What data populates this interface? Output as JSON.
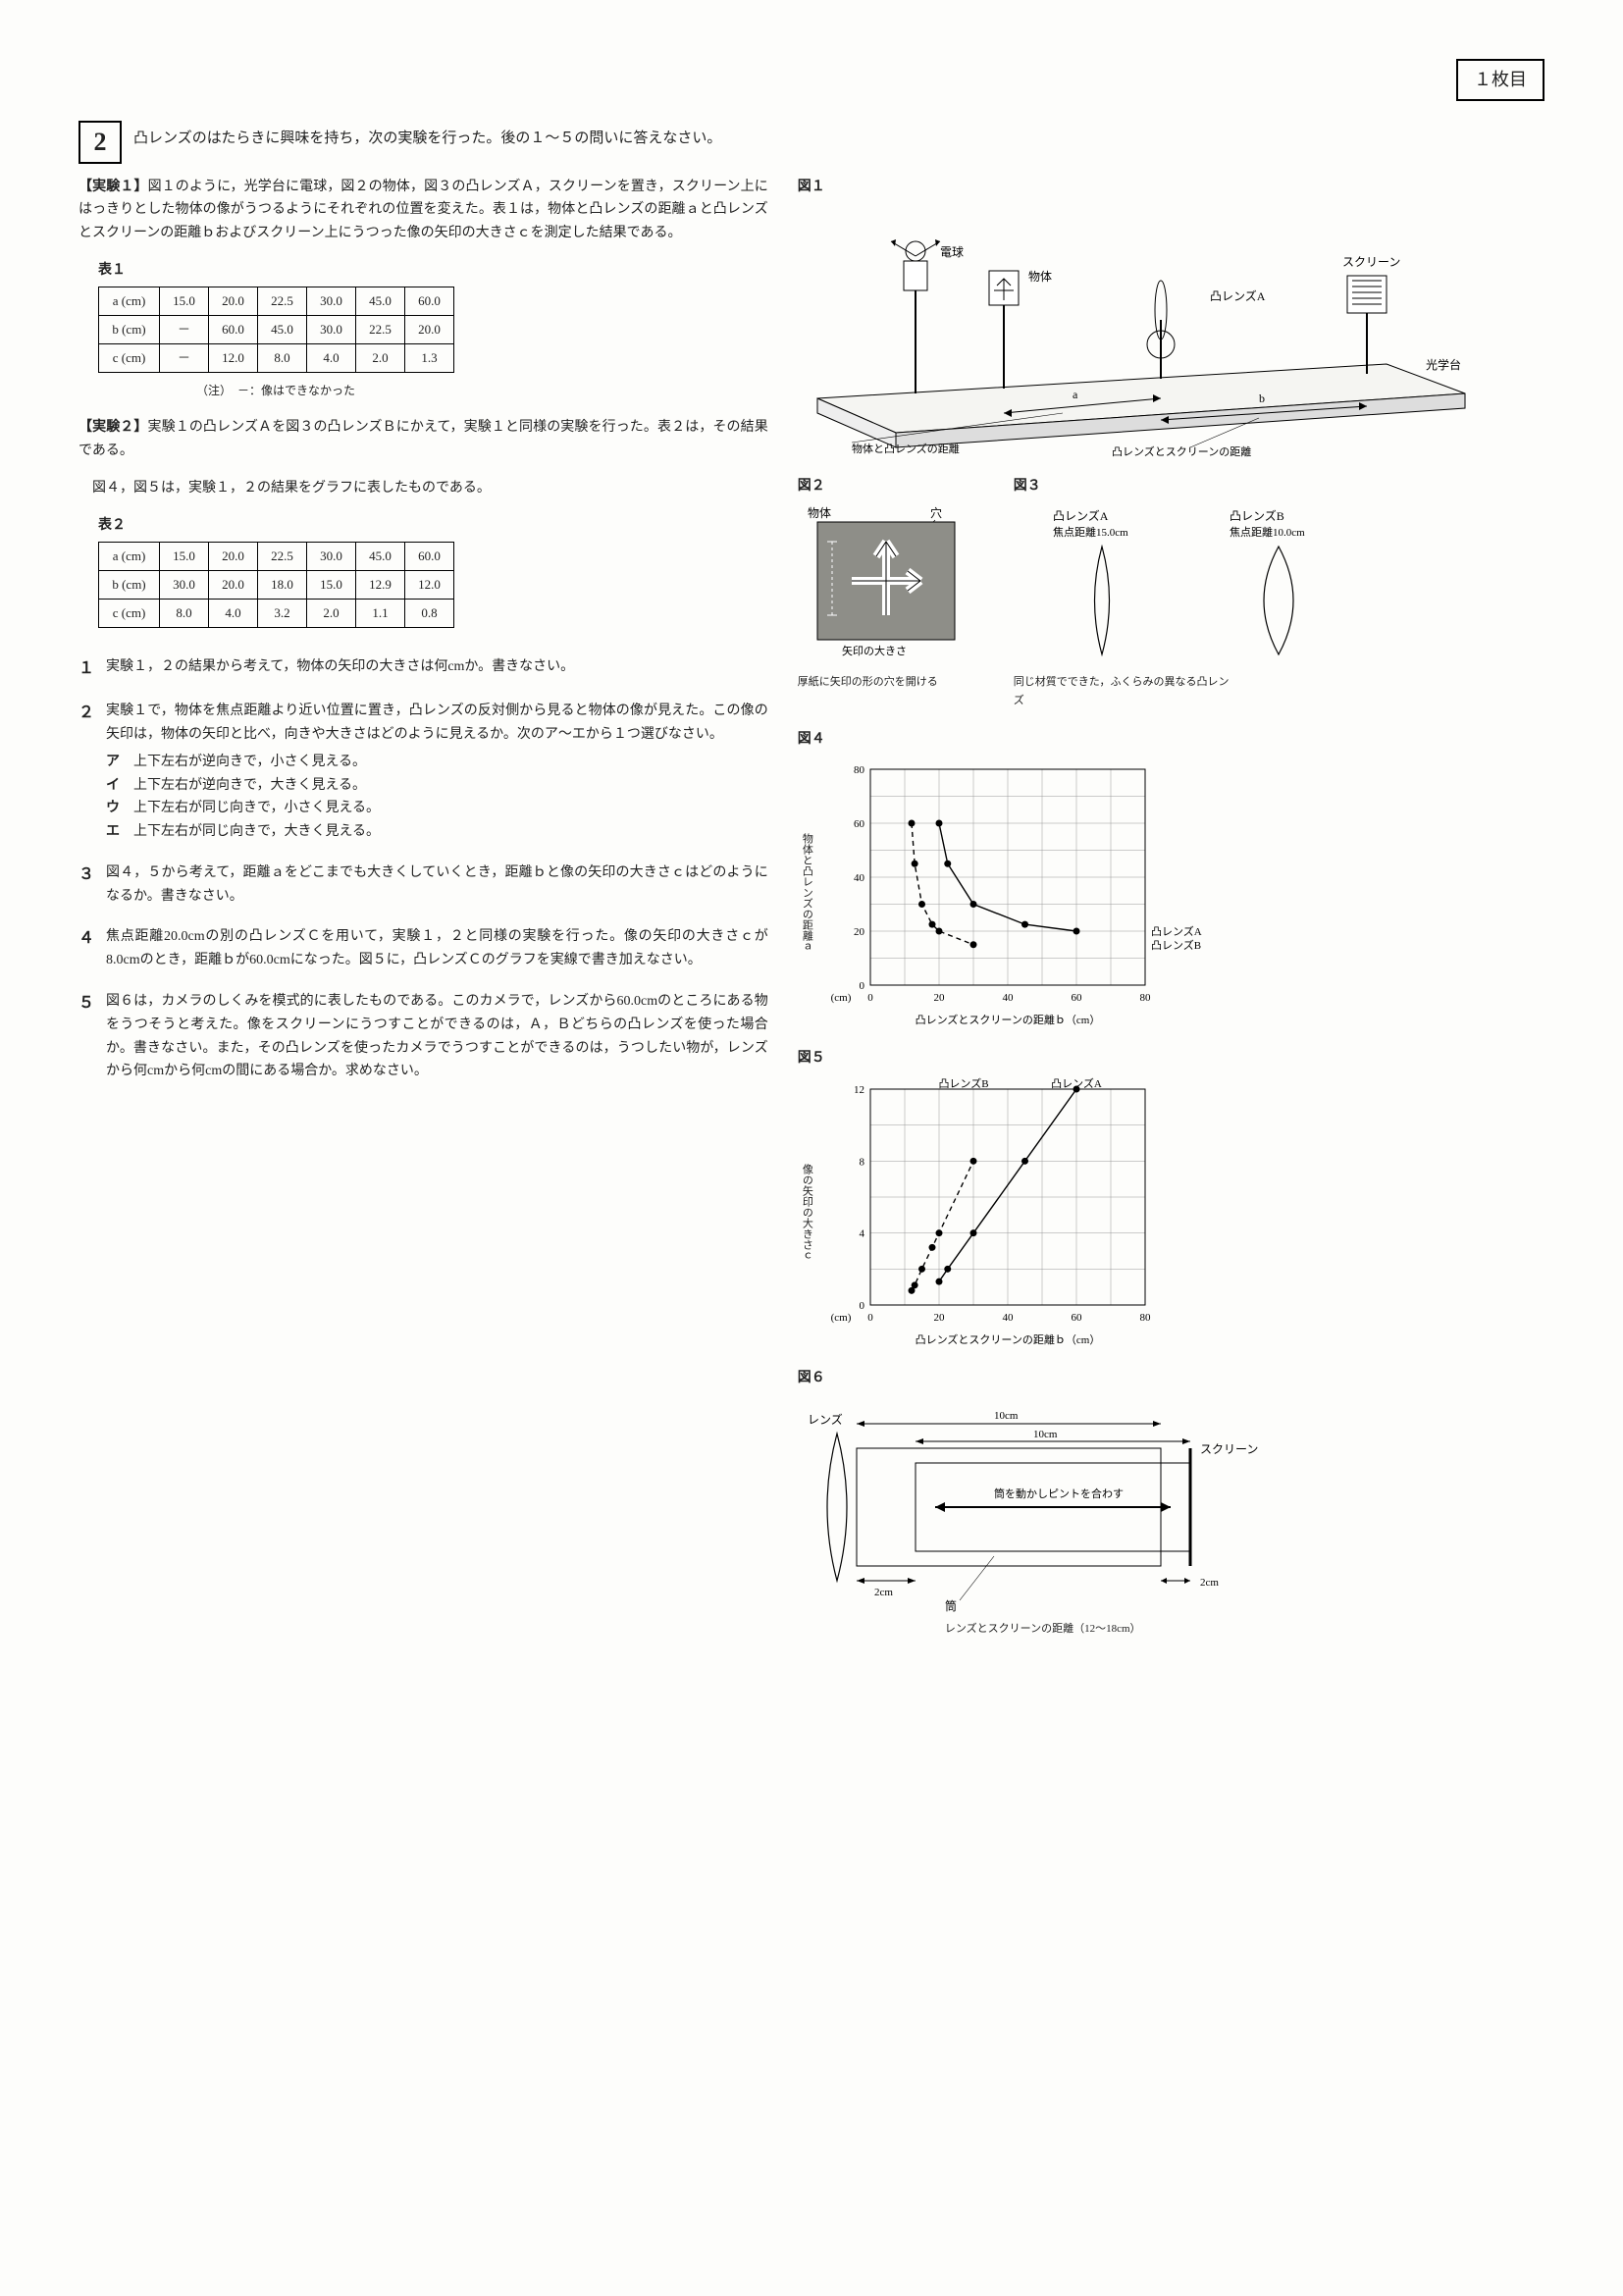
{
  "page_tag": "１枚目",
  "question_box": "2",
  "intro": "凸レンズのはたらきに興味を持ち，次の実験を行った。後の１〜５の問いに答えなさい。",
  "exp1": {
    "head": "【実験１】",
    "text": "図１のように，光学台に電球，図２の物体，図３の凸レンズＡ，スクリーンを置き，スクリーン上にはっきりとした物体の像がうつるようにそれぞれの位置を変えた。表１は，物体と凸レンズの距離ａと凸レンズとスクリーンの距離ｂおよびスクリーン上にうつった像の矢印の大きさｃを測定した結果である。"
  },
  "table1": {
    "label": "表１",
    "rows": [
      [
        "a (cm)",
        "15.0",
        "20.0",
        "22.5",
        "30.0",
        "45.0",
        "60.0"
      ],
      [
        "b (cm)",
        "－",
        "60.0",
        "45.0",
        "30.0",
        "22.5",
        "20.0"
      ],
      [
        "c (cm)",
        "－",
        "12.0",
        "8.0",
        "4.0",
        "2.0",
        "1.3"
      ]
    ],
    "note": "（注）　－：像はできなかった"
  },
  "exp2": {
    "head": "【実験２】",
    "text": "実験１の凸レンズＡを図３の凸レンズＢにかえて，実験１と同様の実験を行った。表２は，その結果である。",
    "text2": "図４，図５は，実験１，２の結果をグラフに表したものである。"
  },
  "table2": {
    "label": "表２",
    "rows": [
      [
        "a (cm)",
        "15.0",
        "20.0",
        "22.5",
        "30.0",
        "45.0",
        "60.0"
      ],
      [
        "b (cm)",
        "30.0",
        "20.0",
        "18.0",
        "15.0",
        "12.9",
        "12.0"
      ],
      [
        "c (cm)",
        "8.0",
        "4.0",
        "3.2",
        "2.0",
        "1.1",
        "0.8"
      ]
    ]
  },
  "q1": {
    "num": "１",
    "text": "実験１，２の結果から考えて，物体の矢印の大きさは何cmか。書きなさい。"
  },
  "q2": {
    "num": "２",
    "text": "実験１で，物体を焦点距離より近い位置に置き，凸レンズの反対側から見ると物体の像が見えた。この像の矢印は，物体の矢印と比べ，向きや大きさはどのように見えるか。次のア〜エから１つ選びなさい。",
    "choices": [
      {
        "k": "ア",
        "v": "上下左右が逆向きで，小さく見える。"
      },
      {
        "k": "イ",
        "v": "上下左右が逆向きで，大きく見える。"
      },
      {
        "k": "ウ",
        "v": "上下左右が同じ向きで，小さく見える。"
      },
      {
        "k": "エ",
        "v": "上下左右が同じ向きで，大きく見える。"
      }
    ]
  },
  "q3": {
    "num": "３",
    "text": "図４，５から考えて，距離ａをどこまでも大きくしていくとき，距離ｂと像の矢印の大きさｃはどのようになるか。書きなさい。"
  },
  "q4": {
    "num": "４",
    "text": "焦点距離20.0cmの別の凸レンズＣを用いて，実験１，２と同様の実験を行った。像の矢印の大きさｃが8.0cmのとき，距離ｂが60.0cmになった。図５に，凸レンズＣのグラフを実線で書き加えなさい。"
  },
  "q5": {
    "num": "５",
    "text": "図６は，カメラのしくみを模式的に表したものである。このカメラで，レンズから60.0cmのところにある物をうつそうと考えた。像をスクリーンにうつすことができるのは，Ａ，Ｂどちらの凸レンズを使った場合か。書きなさい。また，その凸レンズを使ったカメラでうつすことができるのは，うつしたい物が，レンズから何cmから何cmの間にある場合か。求めなさい。"
  },
  "fig1": {
    "label": "図１",
    "labels": {
      "bulb": "電球",
      "object": "物体",
      "lensA": "凸レンズA",
      "screen": "スクリーン",
      "bench": "光学台",
      "a": "a",
      "b": "b",
      "dist_a": "物体と凸レンズの距離",
      "dist_b": "凸レンズとスクリーンの距離"
    }
  },
  "fig2": {
    "label": "図２",
    "labels": {
      "object": "物体",
      "hole": "穴",
      "arrow_size": "矢印の大きさ"
    },
    "caption": "厚紙に矢印の形の穴を開ける"
  },
  "fig3": {
    "label": "図３",
    "labels": {
      "lensA": "凸レンズA",
      "lensB": "凸レンズB",
      "fA": "焦点距離15.0cm",
      "fB": "焦点距離10.0cm"
    },
    "caption": "同じ材質でできた，ふくらみの異なる凸レンズ"
  },
  "fig4": {
    "label": "図４",
    "ylabel": "物体と凸レンズの距離ａ",
    "xlabel": "凸レンズとスクリーンの距離ｂ（cm）",
    "yunit": "(cm)",
    "legendA": "凸レンズA",
    "legendB": "凸レンズB",
    "xlim": [
      0,
      80
    ],
    "ylim": [
      0,
      80
    ],
    "xstep": 20,
    "ystep": 20,
    "seriesA": [
      [
        20,
        60
      ],
      [
        22.5,
        45
      ],
      [
        30,
        30
      ],
      [
        45,
        22.5
      ],
      [
        60,
        20
      ]
    ],
    "seriesB": [
      [
        12,
        60
      ],
      [
        12.9,
        45
      ],
      [
        15,
        30
      ],
      [
        18,
        22.5
      ],
      [
        20,
        20
      ],
      [
        30,
        15
      ]
    ],
    "styleA": "solid",
    "styleB": "dashed",
    "colors": {
      "line": "#000000",
      "grid": "#999999",
      "bg": "#ffffff"
    }
  },
  "fig5": {
    "label": "図５",
    "ylabel": "像の矢印の大きさｃ",
    "xlabel": "凸レンズとスクリーンの距離ｂ（cm）",
    "yunit": "(cm)",
    "legendA": "凸レンズA",
    "legendB": "凸レンズB",
    "xlim": [
      0,
      80
    ],
    "ylim": [
      0,
      12
    ],
    "xstep": 20,
    "ystep": 4,
    "seriesA": [
      [
        20,
        1.3
      ],
      [
        22.5,
        2
      ],
      [
        30,
        4
      ],
      [
        45,
        8
      ],
      [
        60,
        12
      ]
    ],
    "seriesB": [
      [
        12,
        0.8
      ],
      [
        12.9,
        1.1
      ],
      [
        15,
        2
      ],
      [
        18,
        3.2
      ],
      [
        20,
        4
      ],
      [
        30,
        8
      ]
    ],
    "styleA": "solid",
    "styleB": "dashed",
    "colors": {
      "line": "#000000",
      "grid": "#999999",
      "bg": "#ffffff"
    }
  },
  "fig6": {
    "label": "図６",
    "labels": {
      "lens": "レンズ",
      "screen": "スクリーン",
      "tube": "筒",
      "focus_note": "筒を動かしピントを合わす",
      "d10a": "10cm",
      "d10b": "10cm",
      "d2a": "2cm",
      "d2b": "2cm"
    },
    "caption": "レンズとスクリーンの距離（12〜18cm）"
  }
}
